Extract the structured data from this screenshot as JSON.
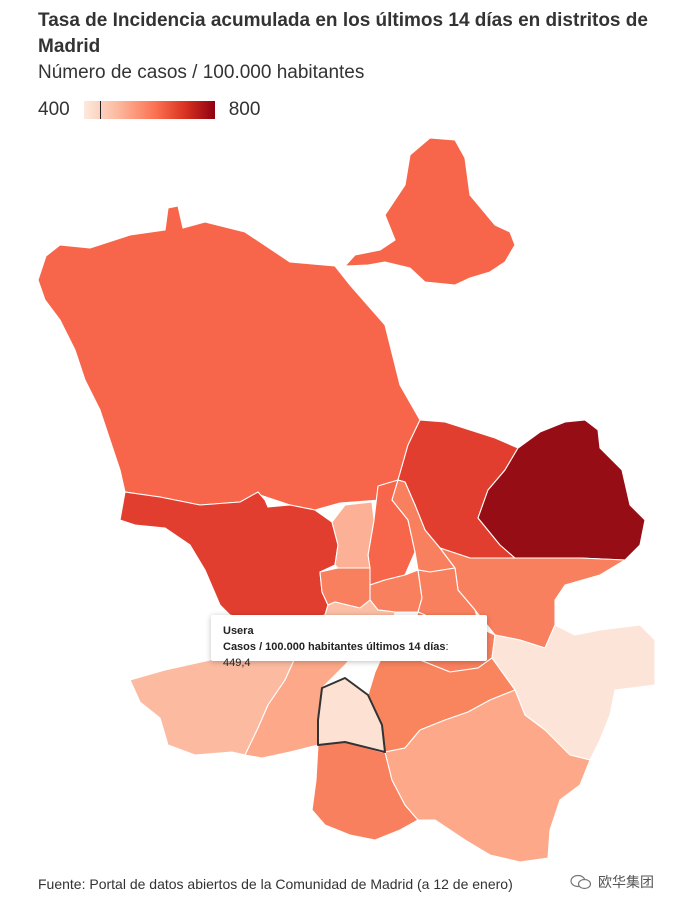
{
  "header": {
    "title": "Tasa de Incidencia acumulada en los últimos 14 días en distritos de Madrid",
    "subtitle": "Número de casos / 100.000 habitantes"
  },
  "legend": {
    "min_label": "400",
    "max_label": "800",
    "min": 400,
    "max": 800,
    "marker_value": 449.4,
    "colors": [
      "#fde9de",
      "#fcbba1",
      "#fb7050",
      "#d7301f",
      "#8e0012"
    ]
  },
  "tooltip": {
    "name": "Usera",
    "label": "Casos / 100.000 habitantes últimos 14 días",
    "value": "449,4"
  },
  "districts": [
    {
      "id": "fuencarral",
      "fill": "#f7664a"
    },
    {
      "id": "barajas",
      "fill": "#f7664a"
    },
    {
      "id": "hortaleza",
      "fill": "#e23e2f"
    },
    {
      "id": "san-blas",
      "fill": "#960d16"
    },
    {
      "id": "moncloa",
      "fill": "#e23e2f"
    },
    {
      "id": "tetuan",
      "fill": "#f7664a"
    },
    {
      "id": "chamberi",
      "fill": "#fcb196"
    },
    {
      "id": "chamartin",
      "fill": "#f9805e"
    },
    {
      "id": "salamanca",
      "fill": "#f9805e"
    },
    {
      "id": "ciudad-lineal",
      "fill": "#f9805e"
    },
    {
      "id": "centro",
      "fill": "#f9805e"
    },
    {
      "id": "retiro",
      "fill": "#f9805e"
    },
    {
      "id": "arganzuela",
      "fill": "#fcbfa5"
    },
    {
      "id": "moratalaz",
      "fill": "#f9805e"
    },
    {
      "id": "vicalvaro",
      "fill": "#fde4d8"
    },
    {
      "id": "latina",
      "fill": "#fcbba1"
    },
    {
      "id": "carabanchel",
      "fill": "#fca889"
    },
    {
      "id": "usera",
      "fill": "#fde2d4"
    },
    {
      "id": "puente-vallecas",
      "fill": "#f9855f"
    },
    {
      "id": "villaverde",
      "fill": "#f9805e"
    },
    {
      "id": "villa-vallecas",
      "fill": "#fca889"
    }
  ],
  "footer": {
    "source": "Fuente: Portal de datos abiertos de la Comunidad de Madrid (a 12 de enero)"
  },
  "watermark": {
    "text": "欧华集团"
  }
}
